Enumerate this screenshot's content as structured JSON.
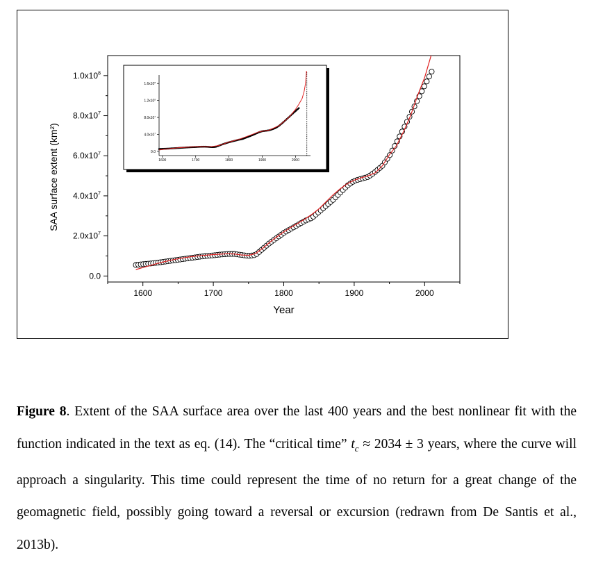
{
  "chart_data": [
    {
      "type": "scatter",
      "title": "",
      "xlabel": "Year",
      "ylabel": "SAA surface extent (km²)",
      "xlim": [
        1550,
        2050
      ],
      "ylim": [
        -3000000,
        110000000
      ],
      "xticks": [
        1600,
        1700,
        1800,
        1900,
        2000
      ],
      "xtick_labels": [
        "1600",
        "1700",
        "1800",
        "1900",
        "2000"
      ],
      "yticks": [
        0,
        20000000,
        40000000,
        60000000,
        80000000,
        100000000
      ],
      "ytick_labels": [
        {
          "mantissa": "0.0",
          "exp": ""
        },
        {
          "mantissa": "2.0x10",
          "exp": "7"
        },
        {
          "mantissa": "4.0x10",
          "exp": "7"
        },
        {
          "mantissa": "6.0x10",
          "exp": "7"
        },
        {
          "mantissa": "8.0x10",
          "exp": "7"
        },
        {
          "mantissa": "1.0x10",
          "exp": "8"
        }
      ],
      "series": [
        {
          "style": "open-circles",
          "color": "#000000",
          "x": [
            1590,
            1600,
            1610,
            1620,
            1630,
            1640,
            1650,
            1660,
            1670,
            1680,
            1690,
            1700,
            1710,
            1720,
            1730,
            1740,
            1750,
            1760,
            1770,
            1780,
            1790,
            1800,
            1810,
            1820,
            1830,
            1840,
            1850,
            1860,
            1870,
            1880,
            1890,
            1900,
            1910,
            1920,
            1930,
            1940,
            1950,
            1960,
            1970,
            1980,
            1990,
            2000,
            2010
          ],
          "y": [
            5500000,
            5900000,
            6200000,
            6600000,
            7100000,
            7600000,
            8100000,
            8600000,
            9100000,
            9600000,
            10000000,
            10300000,
            10700000,
            11000000,
            11000000,
            10500000,
            10000000,
            10500000,
            13500000,
            16500000,
            19000000,
            21500000,
            23500000,
            25500000,
            27500000,
            29000000,
            32000000,
            35000000,
            38000000,
            41500000,
            45000000,
            47500000,
            48500000,
            49500000,
            52000000,
            55000000,
            60000000,
            66500000,
            73500000,
            80500000,
            88000000,
            95000000,
            102000000
          ]
        },
        {
          "style": "line",
          "color": "#e02020",
          "x": [
            1590,
            1600,
            1610,
            1620,
            1630,
            1640,
            1650,
            1660,
            1670,
            1680,
            1690,
            1700,
            1710,
            1720,
            1730,
            1740,
            1750,
            1760,
            1770,
            1780,
            1790,
            1800,
            1810,
            1820,
            1830,
            1840,
            1850,
            1860,
            1870,
            1880,
            1890,
            1900,
            1910,
            1920,
            1930,
            1940,
            1950,
            1960,
            1970,
            1980,
            1990,
            2000,
            2005,
            2010
          ],
          "y": [
            3200000,
            4200000,
            5200000,
            6200000,
            7100000,
            7900000,
            8600000,
            9200000,
            9700000,
            10100000,
            10400000,
            10700000,
            10900000,
            11100000,
            11000000,
            10500000,
            10300000,
            11200000,
            13800000,
            16800000,
            19500000,
            22000000,
            24200000,
            26300000,
            28400000,
            30800000,
            33500000,
            37000000,
            40500000,
            43500000,
            46000000,
            47800000,
            49000000,
            50000000,
            51500000,
            55000000,
            60500000,
            65000000,
            72000000,
            80000000,
            90000000,
            99000000,
            105000000,
            111000000
          ]
        }
      ]
    },
    {
      "type": "scatter",
      "title": "",
      "xlim": [
        1590,
        2045
      ],
      "ylim": [
        -10000000,
        180000000
      ],
      "xticks": [
        1600,
        1700,
        1800,
        1900,
        2000
      ],
      "xtick_labels": [
        "1600",
        "1700",
        "1800",
        "1900",
        "2000"
      ],
      "yticks": [
        0,
        40000000,
        80000000,
        120000000,
        160000000
      ],
      "ytick_labels": [
        {
          "mantissa": "0.0",
          "exp": ""
        },
        {
          "mantissa": "4.0x10",
          "exp": "7"
        },
        {
          "mantissa": "8.0x10",
          "exp": "7"
        },
        {
          "mantissa": "1.2x10",
          "exp": "8"
        },
        {
          "mantissa": "1.6x10",
          "exp": "8"
        }
      ],
      "critical_time_marker": 2034,
      "series": [
        {
          "style": "points",
          "color": "#000000",
          "x": [
            1590,
            1600,
            1610,
            1620,
            1630,
            1640,
            1650,
            1660,
            1670,
            1680,
            1690,
            1700,
            1710,
            1720,
            1730,
            1740,
            1750,
            1760,
            1770,
            1780,
            1790,
            1800,
            1810,
            1820,
            1830,
            1840,
            1850,
            1860,
            1870,
            1880,
            1890,
            1900,
            1910,
            1920,
            1930,
            1940,
            1950,
            1960,
            1970,
            1980,
            1990,
            2000,
            2010
          ],
          "y": [
            5500000,
            5900000,
            6200000,
            6600000,
            7100000,
            7600000,
            8100000,
            8600000,
            9100000,
            9600000,
            10000000,
            10300000,
            10700000,
            11000000,
            11000000,
            10500000,
            10000000,
            10500000,
            13500000,
            16500000,
            19000000,
            21500000,
            23500000,
            25500000,
            27500000,
            29000000,
            32000000,
            35000000,
            38000000,
            41500000,
            45000000,
            47500000,
            48500000,
            49500000,
            52000000,
            55000000,
            60000000,
            66500000,
            73500000,
            80500000,
            88000000,
            95000000,
            102000000
          ]
        },
        {
          "style": "line",
          "color": "#e02020",
          "x": [
            1590,
            1620,
            1650,
            1680,
            1710,
            1740,
            1770,
            1800,
            1830,
            1860,
            1890,
            1920,
            1950,
            1980,
            2000,
            2010,
            2020,
            2026,
            2030,
            2032,
            2033
          ],
          "y": [
            3200000,
            6200000,
            8600000,
            10100000,
            10900000,
            10500000,
            13800000,
            22000000,
            28400000,
            37000000,
            46000000,
            50000000,
            60500000,
            80000000,
            99000000,
            111000000,
            125000000,
            142000000,
            160000000,
            178000000,
            190000000
          ]
        }
      ]
    }
  ],
  "caption": {
    "label": "Figure 8",
    "text_part1": ". Extent of the SAA surface area over the last 400 years and the best nonlinear fit with the function indicated in the text as eq. (14). The “critical time” ",
    "tc_symbol": "t",
    "tc_subscript": "c",
    "text_part2": " ≈ 2034 ± 3 years, where the curve will approach a singularity. This time could represent the time of no return for a great change of the geomagnetic field, possibly going toward a reversal or excursion (redrawn from De Santis et al., 2013b)."
  }
}
